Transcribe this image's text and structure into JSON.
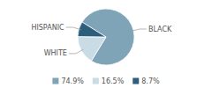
{
  "chart_data": {
    "type": "pie",
    "categories": [
      "BLACK",
      "WHITE",
      "HISPANIC"
    ],
    "values": [
      74.9,
      16.5,
      8.7
    ],
    "value_labels": [
      "74.9%",
      "16.5%",
      "8.7%"
    ],
    "colors": [
      "#7fa3b7",
      "#c9dce5",
      "#2d5f7c"
    ],
    "legend": "bottom"
  }
}
